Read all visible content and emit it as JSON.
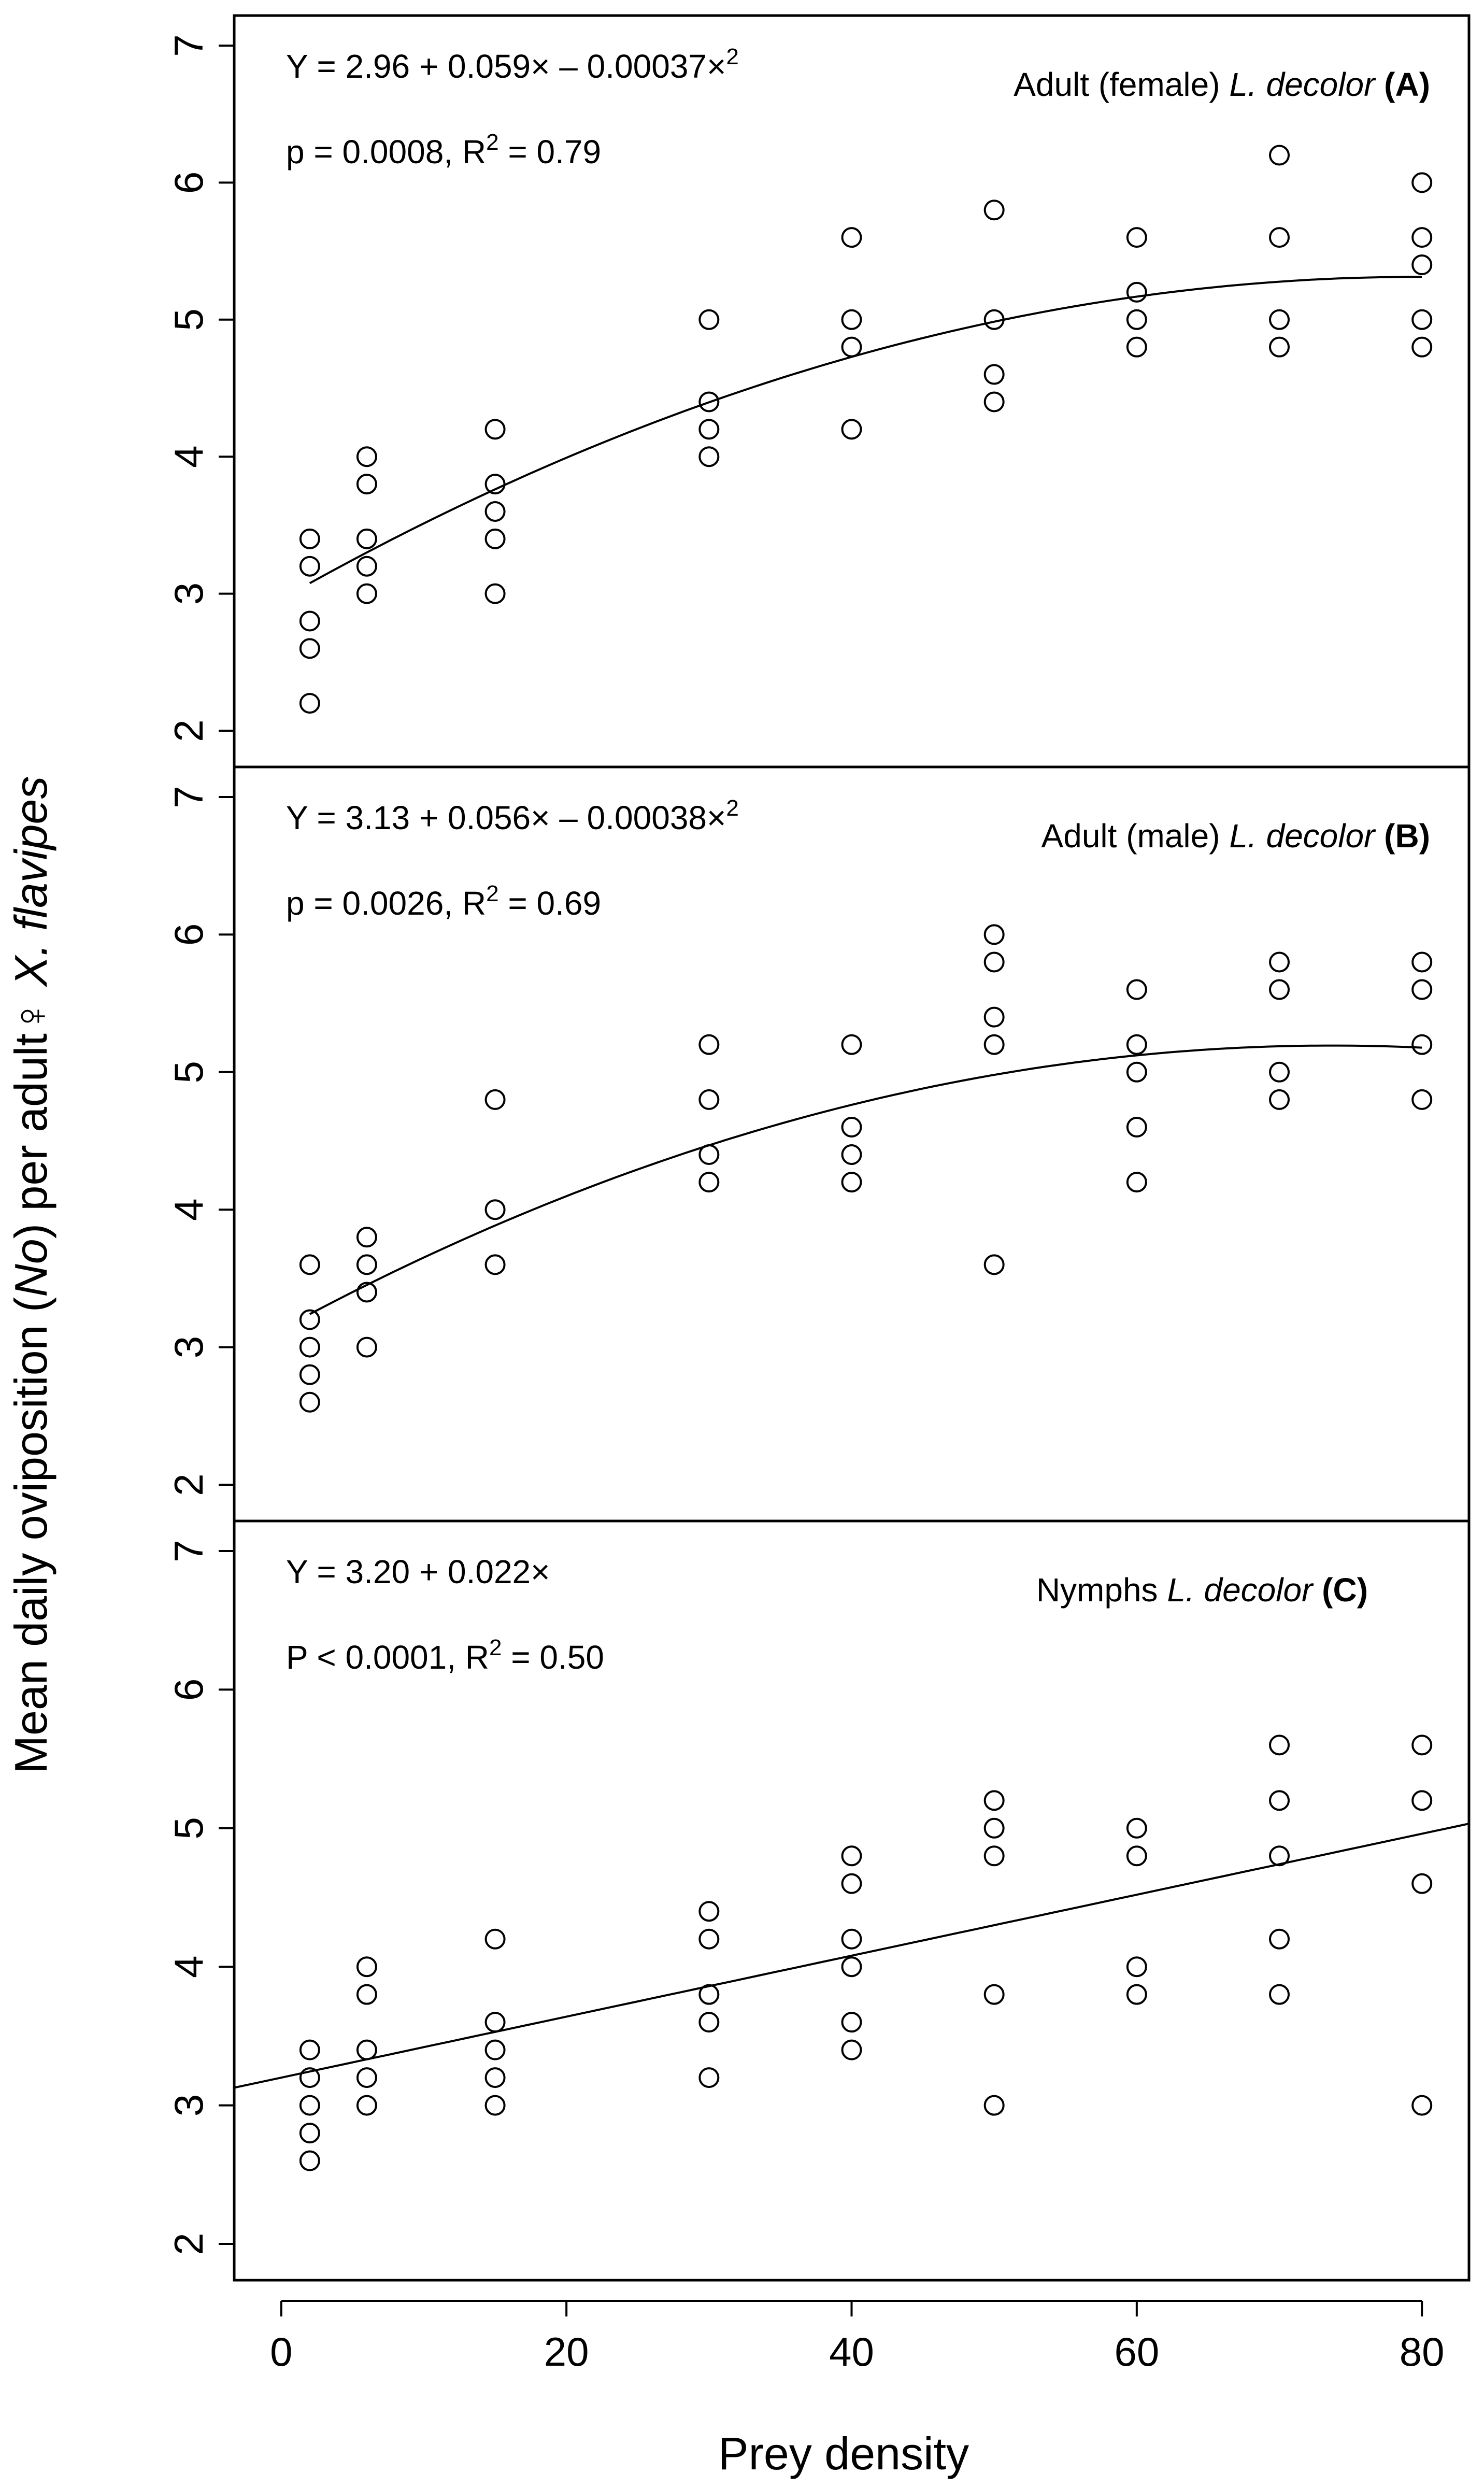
{
  "chart_data": [
    {
      "type": "scatter",
      "panel": "A",
      "title_prefix": "Adult (female) ",
      "title_italic": "L. decolor",
      "title_suffix": "(A)",
      "equation": "Y = 2.96 + 0.059× – 0.00037×",
      "equation_exp": "2",
      "stats_a": "p = 0.0008, R",
      "stats_exp": "2",
      "stats_b": " = 0.79",
      "ylim": [
        2,
        7
      ],
      "y_ticks": [
        2,
        3,
        4,
        5,
        6,
        7
      ],
      "points": [
        [
          2,
          2.2
        ],
        [
          2,
          2.6
        ],
        [
          2,
          2.8
        ],
        [
          2,
          3.2
        ],
        [
          2,
          3.4
        ],
        [
          6,
          3.0
        ],
        [
          6,
          3.2
        ],
        [
          6,
          3.4
        ],
        [
          6,
          3.8
        ],
        [
          6,
          4.0
        ],
        [
          15,
          3.0
        ],
        [
          15,
          3.4
        ],
        [
          15,
          3.6
        ],
        [
          15,
          3.8
        ],
        [
          15,
          4.2
        ],
        [
          30,
          4.0
        ],
        [
          30,
          4.2
        ],
        [
          30,
          4.4
        ],
        [
          30,
          5.0
        ],
        [
          40,
          4.2
        ],
        [
          40,
          4.8
        ],
        [
          40,
          5.0
        ],
        [
          40,
          5.6
        ],
        [
          50,
          4.4
        ],
        [
          50,
          4.6
        ],
        [
          50,
          5.0
        ],
        [
          50,
          5.8
        ],
        [
          60,
          4.8
        ],
        [
          60,
          5.0
        ],
        [
          60,
          5.2
        ],
        [
          60,
          5.6
        ],
        [
          70,
          4.8
        ],
        [
          70,
          5.0
        ],
        [
          70,
          5.6
        ],
        [
          70,
          6.2
        ],
        [
          80,
          4.8
        ],
        [
          80,
          5.0
        ],
        [
          80,
          5.4
        ],
        [
          80,
          5.6
        ],
        [
          80,
          6.0
        ]
      ],
      "fit": {
        "kind": "quadratic",
        "a": 2.96,
        "b": 0.059,
        "c": -0.00037,
        "x_range": [
          2,
          80
        ]
      }
    },
    {
      "type": "scatter",
      "panel": "B",
      "title_prefix": "Adult (male) ",
      "title_italic": "L. decolor",
      "title_suffix": "(B)",
      "equation": "Y = 3.13 + 0.056× – 0.00038×",
      "equation_exp": "2",
      "stats_a": "p = 0.0026, R",
      "stats_exp": "2",
      "stats_b": " = 0.69",
      "ylim": [
        2,
        7
      ],
      "y_ticks": [
        2,
        3,
        4,
        5,
        6,
        7
      ],
      "points": [
        [
          2,
          2.6
        ],
        [
          2,
          2.8
        ],
        [
          2,
          3.0
        ],
        [
          2,
          3.2
        ],
        [
          2,
          3.6
        ],
        [
          6,
          3.0
        ],
        [
          6,
          3.4
        ],
        [
          6,
          3.6
        ],
        [
          6,
          3.8
        ],
        [
          15,
          3.6
        ],
        [
          15,
          4.0
        ],
        [
          15,
          4.8
        ],
        [
          30,
          4.2
        ],
        [
          30,
          4.4
        ],
        [
          30,
          4.8
        ],
        [
          30,
          5.2
        ],
        [
          40,
          4.2
        ],
        [
          40,
          4.4
        ],
        [
          40,
          4.6
        ],
        [
          40,
          5.2
        ],
        [
          50,
          3.6
        ],
        [
          50,
          5.2
        ],
        [
          50,
          5.4
        ],
        [
          50,
          5.8
        ],
        [
          50,
          6.0
        ],
        [
          60,
          4.2
        ],
        [
          60,
          4.6
        ],
        [
          60,
          5.0
        ],
        [
          60,
          5.2
        ],
        [
          60,
          5.6
        ],
        [
          70,
          4.8
        ],
        [
          70,
          5.0
        ],
        [
          70,
          5.6
        ],
        [
          70,
          5.8
        ],
        [
          80,
          4.8
        ],
        [
          80,
          5.2
        ],
        [
          80,
          5.6
        ],
        [
          80,
          5.8
        ]
      ],
      "fit": {
        "kind": "quadratic",
        "a": 3.13,
        "b": 0.056,
        "c": -0.00038,
        "x_range": [
          2,
          80
        ]
      }
    },
    {
      "type": "scatter",
      "panel": "C",
      "title_prefix": "Nymphs ",
      "title_italic": "L. decolor",
      "title_suffix": "(C)",
      "equation": "Y = 3.20 + 0.022×",
      "equation_exp": "",
      "stats_a": "P < 0.0001, R",
      "stats_exp": "2",
      "stats_b": " = 0.50",
      "ylim": [
        2,
        7
      ],
      "y_ticks": [
        2,
        3,
        4,
        5,
        6,
        7
      ],
      "points": [
        [
          2,
          2.6
        ],
        [
          2,
          2.8
        ],
        [
          2,
          3.0
        ],
        [
          2,
          3.2
        ],
        [
          2,
          3.4
        ],
        [
          6,
          3.0
        ],
        [
          6,
          3.2
        ],
        [
          6,
          3.4
        ],
        [
          6,
          3.8
        ],
        [
          6,
          4.0
        ],
        [
          15,
          3.0
        ],
        [
          15,
          3.2
        ],
        [
          15,
          3.4
        ],
        [
          15,
          3.6
        ],
        [
          15,
          4.2
        ],
        [
          30,
          3.2
        ],
        [
          30,
          3.6
        ],
        [
          30,
          3.8
        ],
        [
          30,
          4.2
        ],
        [
          30,
          4.4
        ],
        [
          40,
          3.4
        ],
        [
          40,
          3.6
        ],
        [
          40,
          4.0
        ],
        [
          40,
          4.2
        ],
        [
          40,
          4.6
        ],
        [
          40,
          4.8
        ],
        [
          50,
          3.0
        ],
        [
          50,
          3.8
        ],
        [
          50,
          4.8
        ],
        [
          50,
          5.0
        ],
        [
          50,
          5.2
        ],
        [
          60,
          3.8
        ],
        [
          60,
          4.0
        ],
        [
          60,
          4.8
        ],
        [
          60,
          5.0
        ],
        [
          70,
          3.8
        ],
        [
          70,
          4.2
        ],
        [
          70,
          4.8
        ],
        [
          70,
          5.2
        ],
        [
          70,
          5.6
        ],
        [
          80,
          3.0
        ],
        [
          80,
          4.6
        ],
        [
          80,
          5.2
        ],
        [
          80,
          5.6
        ]
      ],
      "fit": {
        "kind": "linear",
        "a": 3.2,
        "b": 0.022,
        "c": 0,
        "x_range": [
          -3.3,
          83.3
        ]
      }
    }
  ],
  "x_axis": {
    "label": "Prey density",
    "ticks": [
      0,
      20,
      40,
      60,
      80
    ],
    "xlim": [
      -3.3,
      83.3
    ]
  },
  "y_axis": {
    "label_main": "Mean daily oviposition (",
    "label_no": "No",
    "label_mid": ") per adult",
    "label_female_symbol": "♀",
    "label_species": " X. flavipes"
  }
}
